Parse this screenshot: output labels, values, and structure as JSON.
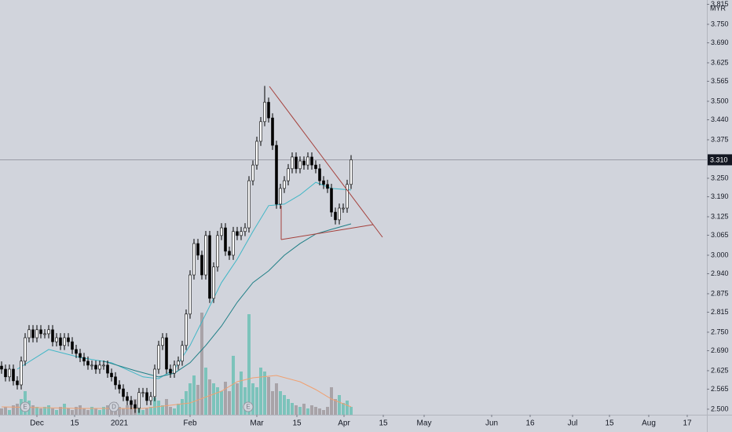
{
  "chart_data": {
    "type": "candlestick",
    "currency": "MYR",
    "xlim": [
      -0.4,
      179.6
    ],
    "ylim": [
      2.482,
      3.829
    ],
    "vlim": [
      0,
      528
    ],
    "grid": false,
    "up_color": "#ffffff",
    "down_color": "#000000",
    "wick_color": "#000000",
    "volume_up_color": "#7cc3bb",
    "volume_down_color": "#a8a3a8",
    "volume_ma_color": "#f0a070",
    "xticks": [
      {
        "value": 9,
        "label": "Dec"
      },
      {
        "value": 18.6,
        "label": "15"
      },
      {
        "value": 30,
        "label": "2021"
      },
      {
        "value": 48,
        "label": "Feb"
      },
      {
        "value": 65,
        "label": "Mar"
      },
      {
        "value": 75.2,
        "label": "15"
      },
      {
        "value": 87.2,
        "label": "Apr"
      },
      {
        "value": 97.2,
        "label": "15"
      },
      {
        "value": 107.6,
        "label": "May"
      },
      {
        "value": 124.8,
        "label": "Jun"
      },
      {
        "value": 134.6,
        "label": "16"
      },
      {
        "value": 145.4,
        "label": "Jul"
      },
      {
        "value": 154.8,
        "label": "15"
      },
      {
        "value": 164.8,
        "label": "Aug"
      },
      {
        "value": 174.6,
        "label": "17"
      }
    ],
    "yticks": [
      {
        "value": 2.5,
        "label": "2.500"
      },
      {
        "value": 2.565,
        "label": "2.565"
      },
      {
        "value": 2.625,
        "label": "2.625"
      },
      {
        "value": 2.69,
        "label": "2.690"
      },
      {
        "value": 2.75,
        "label": "2.750"
      },
      {
        "value": 2.815,
        "label": "2.815"
      },
      {
        "value": 2.875,
        "label": "2.875"
      },
      {
        "value": 2.94,
        "label": "2.940"
      },
      {
        "value": 3,
        "label": "3.000"
      },
      {
        "value": 3.065,
        "label": "3.065"
      },
      {
        "value": 3.125,
        "label": "3.125"
      },
      {
        "value": 3.19,
        "label": "3.190"
      },
      {
        "value": 3.25,
        "label": "3.250"
      },
      {
        "value": 3.375,
        "label": "3.375"
      },
      {
        "value": 3.44,
        "label": "3.440"
      },
      {
        "value": 3.5,
        "label": "3.500"
      },
      {
        "value": 3.565,
        "label": "3.565"
      },
      {
        "value": 3.625,
        "label": "3.625"
      },
      {
        "value": 3.69,
        "label": "3.690"
      },
      {
        "value": 3.75,
        "label": "3.750"
      },
      {
        "value": 3.815,
        "label": "3.815"
      }
    ],
    "price_label": {
      "value": 3.31,
      "label": "3.310"
    },
    "x": [
      0,
      1,
      2,
      3,
      4,
      5,
      6,
      7,
      8,
      9,
      10,
      11,
      12,
      13,
      14,
      15,
      16,
      17,
      18,
      19,
      20,
      21,
      22,
      23,
      24,
      25,
      26,
      27,
      28,
      29,
      30,
      31,
      32,
      33,
      34,
      35,
      36,
      37,
      38,
      39,
      40,
      41,
      42,
      43,
      44,
      45,
      46,
      47,
      48,
      49,
      50,
      51,
      52,
      53,
      54,
      55,
      56,
      57,
      58,
      59,
      60,
      61,
      62,
      63,
      64,
      65,
      66,
      67,
      68,
      69,
      70,
      71,
      72,
      73,
      74,
      75,
      76,
      77,
      78,
      79,
      80,
      81,
      82,
      83,
      84,
      85,
      86,
      87,
      88,
      89
    ],
    "open": [
      2.64,
      2.63,
      2.605,
      2.63,
      2.592,
      2.579,
      2.656,
      2.732,
      2.758,
      2.732,
      2.758,
      2.745,
      2.745,
      2.758,
      2.719,
      2.732,
      2.707,
      2.732,
      2.719,
      2.694,
      2.681,
      2.668,
      2.656,
      2.643,
      2.643,
      2.63,
      2.643,
      2.643,
      2.617,
      2.605,
      2.579,
      2.566,
      2.541,
      2.528,
      2.515,
      2.503,
      2.554,
      2.554,
      2.528,
      2.541,
      2.63,
      2.707,
      2.732,
      2.63,
      2.617,
      2.643,
      2.656,
      2.707,
      2.809,
      2.936,
      3.038,
      3.0,
      2.936,
      3.064,
      2.86,
      2.962,
      3.064,
      3.089,
      3.013,
      3.0,
      3.077,
      3.064,
      3.077,
      3.089,
      3.242,
      3.293,
      3.37,
      3.434,
      3.497,
      3.446,
      3.357,
      3.166,
      3.217,
      3.242,
      3.281,
      3.319,
      3.281,
      3.306,
      3.293,
      3.319,
      3.293,
      3.281,
      3.242,
      3.23,
      3.217,
      3.14,
      3.115,
      3.153,
      3.153,
      3.23
    ],
    "high": [
      2.655,
      2.645,
      2.645,
      2.645,
      2.607,
      2.671,
      2.747,
      2.773,
      2.773,
      2.773,
      2.773,
      2.76,
      2.773,
      2.773,
      2.747,
      2.747,
      2.747,
      2.747,
      2.734,
      2.709,
      2.696,
      2.683,
      2.671,
      2.658,
      2.658,
      2.658,
      2.658,
      2.658,
      2.632,
      2.62,
      2.594,
      2.581,
      2.556,
      2.543,
      2.53,
      2.569,
      2.569,
      2.569,
      2.556,
      2.645,
      2.722,
      2.747,
      2.747,
      2.645,
      2.658,
      2.671,
      2.722,
      2.824,
      2.951,
      3.053,
      3.053,
      3.015,
      3.079,
      3.079,
      2.977,
      3.079,
      3.104,
      3.104,
      3.028,
      3.092,
      3.092,
      3.092,
      3.104,
      3.257,
      3.308,
      3.385,
      3.449,
      3.55,
      3.512,
      3.461,
      3.372,
      3.232,
      3.257,
      3.296,
      3.334,
      3.334,
      3.321,
      3.321,
      3.334,
      3.334,
      3.308,
      3.296,
      3.257,
      3.245,
      3.232,
      3.155,
      3.168,
      3.168,
      3.245,
      3.325
    ],
    "low": [
      2.615,
      2.59,
      2.59,
      2.577,
      2.564,
      2.564,
      2.641,
      2.717,
      2.717,
      2.717,
      2.73,
      2.73,
      2.73,
      2.704,
      2.704,
      2.692,
      2.692,
      2.704,
      2.679,
      2.666,
      2.653,
      2.641,
      2.628,
      2.628,
      2.615,
      2.615,
      2.628,
      2.602,
      2.59,
      2.564,
      2.551,
      2.526,
      2.513,
      2.5,
      2.488,
      2.488,
      2.539,
      2.513,
      2.513,
      2.526,
      2.615,
      2.692,
      2.615,
      2.602,
      2.602,
      2.628,
      2.641,
      2.692,
      2.794,
      2.921,
      2.985,
      2.921,
      2.921,
      2.845,
      2.845,
      2.947,
      3.049,
      2.998,
      2.985,
      2.985,
      3.049,
      3.049,
      3.062,
      3.074,
      3.227,
      3.278,
      3.355,
      3.419,
      3.431,
      3.342,
      3.151,
      3.151,
      3.202,
      3.227,
      3.266,
      3.266,
      3.266,
      3.278,
      3.278,
      3.278,
      3.266,
      3.227,
      3.215,
      3.202,
      3.125,
      3.1,
      3.1,
      3.138,
      3.138,
      3.215
    ],
    "close": [
      2.63,
      2.605,
      2.63,
      2.592,
      2.579,
      2.656,
      2.732,
      2.758,
      2.732,
      2.758,
      2.745,
      2.745,
      2.758,
      2.719,
      2.732,
      2.707,
      2.732,
      2.719,
      2.694,
      2.681,
      2.668,
      2.656,
      2.643,
      2.643,
      2.63,
      2.643,
      2.643,
      2.617,
      2.605,
      2.579,
      2.566,
      2.541,
      2.528,
      2.515,
      2.503,
      2.554,
      2.554,
      2.528,
      2.541,
      2.63,
      2.707,
      2.732,
      2.63,
      2.617,
      2.643,
      2.656,
      2.707,
      2.809,
      2.936,
      3.038,
      3.0,
      2.936,
      3.064,
      2.86,
      2.962,
      3.064,
      3.089,
      3.013,
      3.0,
      3.077,
      3.064,
      3.077,
      3.089,
      3.242,
      3.293,
      3.37,
      3.434,
      3.497,
      3.446,
      3.357,
      3.166,
      3.217,
      3.242,
      3.281,
      3.319,
      3.281,
      3.306,
      3.293,
      3.319,
      3.293,
      3.281,
      3.242,
      3.23,
      3.217,
      3.14,
      3.115,
      3.153,
      3.153,
      3.23,
      3.31
    ],
    "volume": [
      8,
      10,
      6,
      12,
      14,
      20,
      30,
      18,
      12,
      10,
      8,
      10,
      12,
      8,
      6,
      10,
      14,
      8,
      6,
      10,
      12,
      8,
      6,
      10,
      8,
      6,
      10,
      12,
      14,
      16,
      10,
      8,
      12,
      14,
      20,
      10,
      6,
      8,
      10,
      22,
      18,
      12,
      20,
      10,
      8,
      14,
      20,
      30,
      40,
      50,
      38,
      130,
      60,
      45,
      40,
      35,
      30,
      42,
      30,
      75,
      40,
      55,
      35,
      128,
      40,
      35,
      60,
      55,
      48,
      30,
      40,
      30,
      25,
      20,
      15,
      12,
      10,
      14,
      8,
      12,
      10,
      8,
      6,
      10,
      35,
      20,
      25,
      15,
      18,
      10
    ],
    "lines": [
      {
        "color": "#3fb6c6",
        "x": [
          4,
          12,
          20,
          28,
          36,
          40,
          44,
          48,
          52,
          56,
          60,
          64,
          68,
          72,
          76,
          80,
          84,
          89
        ],
        "values": [
          2.63,
          2.694,
          2.668,
          2.651,
          2.605,
          2.599,
          2.63,
          2.707,
          2.809,
          2.911,
          2.987,
          3.077,
          3.161,
          3.166,
          3.196,
          3.237,
          3.217,
          3.212
        ]
      },
      {
        "color": "#1f7f86",
        "x": [
          26,
          34,
          40,
          44,
          48,
          52,
          56,
          60,
          64,
          68,
          72,
          76,
          80,
          84,
          89
        ],
        "values": [
          2.656,
          2.625,
          2.605,
          2.617,
          2.651,
          2.707,
          2.77,
          2.847,
          2.911,
          2.949,
          3.0,
          3.038,
          3.069,
          3.084,
          3.102
        ]
      }
    ],
    "volume_ma": {
      "x": [
        0,
        20,
        36,
        48,
        56,
        60,
        64,
        70,
        76,
        80,
        84,
        89
      ],
      "values": [
        10,
        8,
        8,
        15,
        30,
        42,
        47,
        50,
        42,
        32,
        20,
        10
      ]
    },
    "events": [
      {
        "x": 6,
        "label": "E"
      },
      {
        "x": 28.6,
        "label": "D"
      },
      {
        "x": 62.8,
        "label": "E"
      }
    ]
  }
}
